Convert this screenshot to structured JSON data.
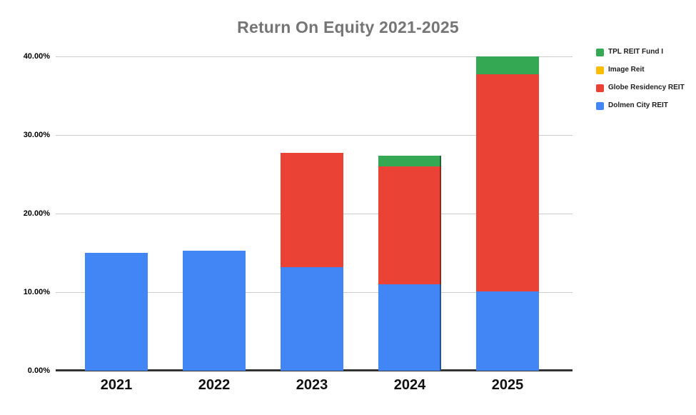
{
  "chart_data": {
    "type": "bar",
    "stacked": true,
    "title": "Return On Equity 2021-2025",
    "categories": [
      "2021",
      "2022",
      "2023",
      "2024",
      "2025"
    ],
    "series": [
      {
        "name": "Dolmen City REIT",
        "color": "#4285F4",
        "values": [
          15.0,
          15.3,
          13.2,
          11.0,
          10.1
        ]
      },
      {
        "name": "Globe Residency REIT",
        "color": "#EA4335",
        "values": [
          0,
          0,
          14.5,
          15.0,
          27.6
        ]
      },
      {
        "name": "Image Reit",
        "color": "#FBBC04",
        "values": [
          0,
          0,
          0,
          0,
          0
        ]
      },
      {
        "name": "TPL REIT Fund I",
        "color": "#34A853",
        "values": [
          0,
          0,
          0,
          1.4,
          2.3
        ]
      }
    ],
    "legend_order": [
      3,
      2,
      1,
      0
    ],
    "y_ticks": [
      {
        "value": 0,
        "label": "0.00%"
      },
      {
        "value": 10,
        "label": "10.00%"
      },
      {
        "value": 20,
        "label": "20.00%"
      },
      {
        "value": 30,
        "label": "30.00%"
      },
      {
        "value": 40,
        "label": "40.00%"
      }
    ],
    "ylim": [
      0,
      40
    ],
    "grid": true,
    "legend_position": "top-right",
    "highlighted_bar": "2024"
  }
}
